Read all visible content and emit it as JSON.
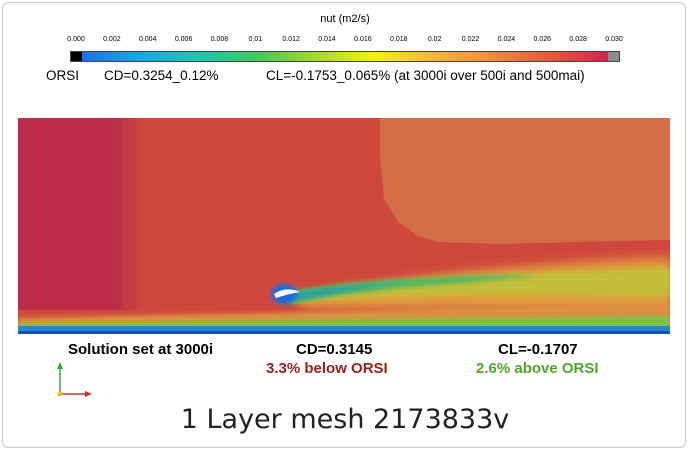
{
  "colorbar": {
    "title": "nut (m2/s)",
    "ticks": [
      "0.000",
      "0.002",
      "0.004",
      "0.006",
      "0.008",
      "0.01",
      "0.012",
      "0.014",
      "0.016",
      "0.018",
      "0.02",
      "0.022",
      "0.024",
      "0.026",
      "0.028",
      "0.030"
    ],
    "range": [
      0.0,
      0.03
    ],
    "colors": [
      "#000000",
      "#1f6ee8",
      "#17a8e0",
      "#1dc7b2",
      "#41c85a",
      "#a6d92c",
      "#f3f01a",
      "#f6b637",
      "#f08c3e",
      "#e55a3c",
      "#d8204e",
      "#8c8c8c"
    ]
  },
  "reference": {
    "label": "ORSI",
    "cd": "CD=0.3254_0.12%",
    "cl": "CL=-0.1753_0.065% (at 3000i over 500i and 500mai)"
  },
  "solution": {
    "label": "Solution set at 3000i",
    "cd": "CD=0.3145",
    "cl": "CL=-0.1707",
    "cd_delta": "3.3% below ORSI",
    "cl_delta": "2.6% above ORSI",
    "cd_delta_color": "#9b1f1a",
    "cl_delta_color": "#4fa62a"
  },
  "caption": "1 Layer mesh 2173833v",
  "icons": {
    "axes": "xyz-axes-triad-icon"
  }
}
